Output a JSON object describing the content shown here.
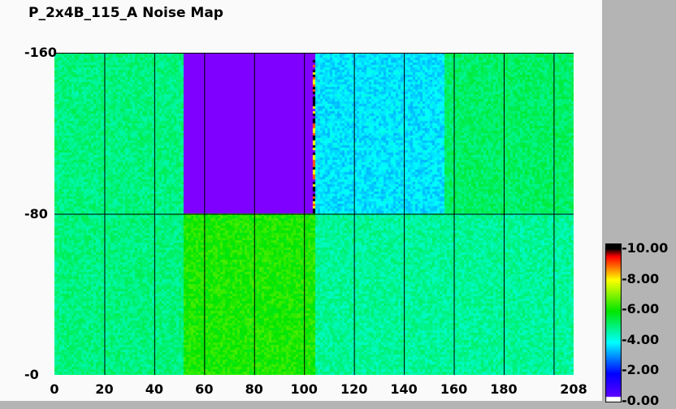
{
  "chart_data": {
    "type": "heatmap",
    "title": "P_2x4B_115_A Noise Map",
    "xlim": [
      0,
      208
    ],
    "ylim": [
      0,
      160
    ],
    "x_ticks": [
      "0",
      "20",
      "40",
      "60",
      "80",
      "100",
      "120",
      "140",
      "160",
      "180",
      "208"
    ],
    "x_tick_values": [
      0,
      20,
      40,
      60,
      80,
      100,
      120,
      140,
      160,
      180,
      208
    ],
    "y_ticks": [
      "-160",
      "-80",
      "-0"
    ],
    "y_tick_values": [
      160,
      80,
      0
    ],
    "grid": true,
    "colorbar": {
      "min": 0,
      "max": 10,
      "ticks": [
        "10.00",
        "8.00",
        "6.00",
        "4.00",
        "2.00",
        "0.00"
      ],
      "colormap": "rainbow (purple-blue-cyan-green-yellow-red-black)",
      "position": "right"
    },
    "regions": [
      {
        "x": [
          0,
          52
        ],
        "y": [
          0,
          160
        ],
        "value": 5.0
      },
      {
        "x": [
          52,
          103
        ],
        "y": [
          80,
          160
        ],
        "value": 0.0
      },
      {
        "x": [
          103,
          104
        ],
        "y": [
          80,
          160
        ],
        "value": "mixed (8-10)"
      },
      {
        "x": [
          104,
          156
        ],
        "y": [
          80,
          160
        ],
        "value": 3.8
      },
      {
        "x": [
          156,
          208
        ],
        "y": [
          80,
          160
        ],
        "value": 5.2
      },
      {
        "x": [
          52,
          104
        ],
        "y": [
          0,
          80
        ],
        "value": 6.2
      },
      {
        "x": [
          104,
          208
        ],
        "y": [
          0,
          80
        ],
        "value": 4.8
      }
    ]
  }
}
